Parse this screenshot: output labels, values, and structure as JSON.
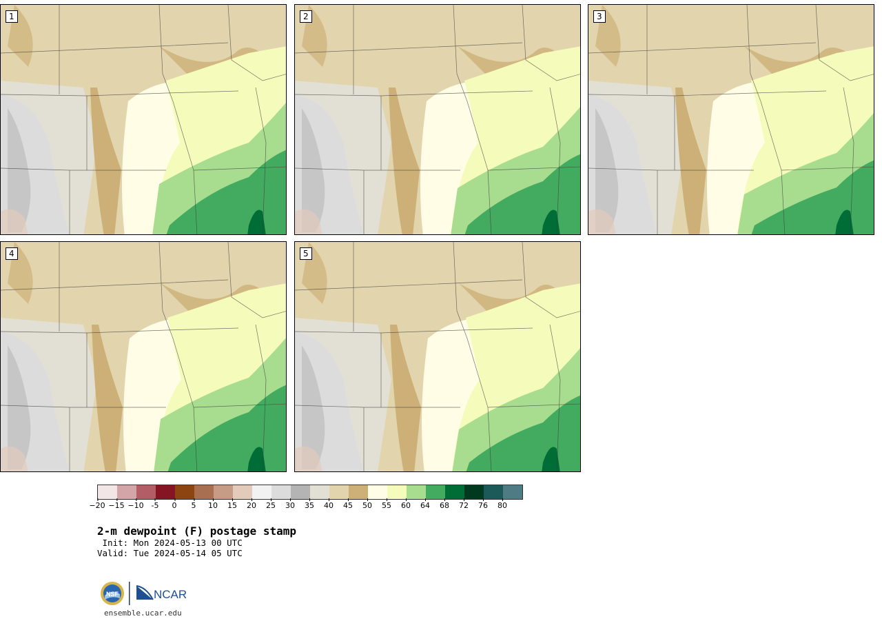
{
  "title": "2-m dewpoint (F) postage stamp",
  "init": " Init: Mon 2024-05-13 00 UTC",
  "valid": "Valid: Tue 2024-05-14 05 UTC",
  "website": "ensemble.ucar.edu",
  "logos": {
    "nsf": "NSF",
    "ncar": "NCAR"
  },
  "members": [
    "1",
    "2",
    "3",
    "4",
    "5"
  ],
  "colorbar": {
    "ticks": [
      "−20",
      "−15",
      "−10",
      "-5",
      "0",
      "5",
      "10",
      "15",
      "20",
      "25",
      "30",
      "35",
      "40",
      "45",
      "50",
      "55",
      "60",
      "64",
      "68",
      "72",
      "76",
      "80"
    ],
    "colors": [
      "#f3e6e6",
      "#d4a5a8",
      "#b35d66",
      "#851522",
      "#8c4410",
      "#a87050",
      "#c69c86",
      "#e2cbbb",
      "#f2f2f2",
      "#dcdcdc",
      "#b4b4b4",
      "#e2e0d4",
      "#e2d5ad",
      "#cdb078",
      "#fffde6",
      "#f5fbbb",
      "#a8dc8f",
      "#43ab5f",
      "#006d37",
      "#00391f",
      "#1c5a5a",
      "#4f7b84"
    ]
  },
  "chart_data": {
    "type": "heatmap",
    "title": "2-m dewpoint (F) postage stamp",
    "units": "F",
    "legend_bins": [
      "−20",
      "−15",
      "−10",
      "-5",
      "0",
      "5",
      "10",
      "15",
      "20",
      "25",
      "30",
      "35",
      "40",
      "45",
      "50",
      "55",
      "60",
      "64",
      "68",
      "72",
      "76",
      "80"
    ],
    "panels": [
      "1",
      "2",
      "3",
      "4",
      "5"
    ]
  }
}
